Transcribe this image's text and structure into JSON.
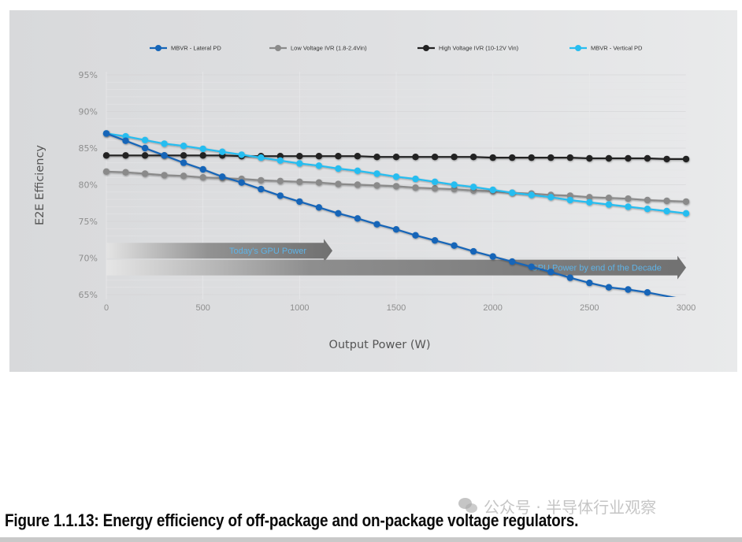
{
  "chart_data": {
    "type": "line",
    "title": "",
    "xlabel": "Output Power (W)",
    "ylabel": "E2E Efficiency",
    "xlim": [
      0,
      3000
    ],
    "ylim": [
      65,
      95
    ],
    "x_ticks": [
      "0",
      "500",
      "1000",
      "1500",
      "2000",
      "2500",
      "3000"
    ],
    "x_tick_values": [
      0,
      500,
      1000,
      1500,
      2000,
      2500,
      3000
    ],
    "y_ticks": [
      "95%",
      "90%",
      "85%",
      "80%",
      "75%",
      "70%",
      "65%"
    ],
    "y_tick_values": [
      95,
      90,
      85,
      80,
      75,
      70,
      65
    ],
    "grid": true,
    "legend_position": "top",
    "x": [
      0,
      100,
      200,
      300,
      400,
      500,
      600,
      700,
      800,
      900,
      1000,
      1100,
      1200,
      1300,
      1400,
      1500,
      1600,
      1700,
      1800,
      1900,
      2000,
      2100,
      2200,
      2300,
      2400,
      2500,
      2600,
      2700,
      2800,
      2900,
      3000
    ],
    "series": [
      {
        "name": "MBVR - Lateral PD",
        "color": "#1565b8",
        "values": [
          87.0,
          86.0,
          85.0,
          84.0,
          83.0,
          82.1,
          81.1,
          80.3,
          79.4,
          78.5,
          77.7,
          76.9,
          76.1,
          75.4,
          74.6,
          73.9,
          73.1,
          72.4,
          71.7,
          70.9,
          70.2,
          69.5,
          68.8,
          68.1,
          67.3,
          66.6,
          66.0,
          65.7,
          65.3,
          64.8,
          64.3
        ]
      },
      {
        "name": "Low Voltage IVR (1.8-2.4Vin)",
        "color": "#8a8a8a",
        "values": [
          81.8,
          81.7,
          81.5,
          81.3,
          81.2,
          81.0,
          80.9,
          80.8,
          80.6,
          80.5,
          80.4,
          80.3,
          80.1,
          80.0,
          79.9,
          79.8,
          79.6,
          79.5,
          79.4,
          79.2,
          79.1,
          78.9,
          78.8,
          78.6,
          78.5,
          78.3,
          78.2,
          78.1,
          77.9,
          77.8,
          77.7
        ]
      },
      {
        "name": "High Voltage IVR (10-12V Vin)",
        "color": "#222222",
        "values": [
          84.0,
          84.0,
          84.0,
          84.0,
          84.0,
          84.0,
          84.0,
          83.9,
          83.9,
          83.9,
          83.9,
          83.9,
          83.9,
          83.9,
          83.8,
          83.8,
          83.8,
          83.8,
          83.8,
          83.8,
          83.7,
          83.7,
          83.7,
          83.7,
          83.7,
          83.6,
          83.6,
          83.6,
          83.6,
          83.5,
          83.5
        ]
      },
      {
        "name": "MBVR - Vertical PD",
        "color": "#27bdf0",
        "values": [
          87.0,
          86.6,
          86.1,
          85.6,
          85.3,
          84.9,
          84.5,
          84.1,
          83.7,
          83.3,
          82.9,
          82.6,
          82.2,
          81.9,
          81.5,
          81.1,
          80.8,
          80.4,
          80.0,
          79.7,
          79.3,
          78.9,
          78.6,
          78.3,
          77.9,
          77.6,
          77.3,
          77.0,
          76.7,
          76.4,
          76.1
        ]
      }
    ],
    "annotations": [
      {
        "text": "Today's GPU Power",
        "type": "arrow",
        "x_start": 0,
        "x_end": 1170,
        "y_center": 71
      },
      {
        "text": "GPU Power by end of the Decade",
        "type": "arrow",
        "x_start": 0,
        "x_end": 3000,
        "y_center": 68.7
      }
    ]
  },
  "caption": "Figure 1.1.13: Energy efficiency of off-package and on-package voltage regulators.",
  "watermark": "公众号 · 半导体行业观察"
}
